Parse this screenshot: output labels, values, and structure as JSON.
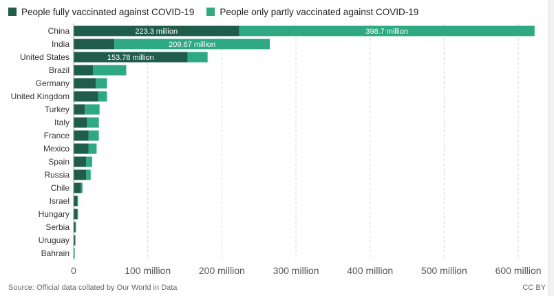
{
  "legend": {
    "fully_label": "People fully vaccinated against COVID-19",
    "partly_label": "People only partly vaccinated against COVID-19"
  },
  "colors": {
    "fully": "#1f5d4a",
    "partly": "#2fa982",
    "grid": "#d9d9d9",
    "text": "#333333"
  },
  "footer": {
    "source": "Source: Official data collated by Our World in Data",
    "license": "CC BY"
  },
  "chart_data": {
    "type": "bar",
    "orientation": "horizontal",
    "stacked": true,
    "categories": [
      "China",
      "India",
      "United States",
      "Brazil",
      "Germany",
      "United Kingdom",
      "Turkey",
      "Italy",
      "France",
      "Mexico",
      "Spain",
      "Russia",
      "Chile",
      "Israel",
      "Hungary",
      "Serbia",
      "Uruguay",
      "Bahrain"
    ],
    "series": [
      {
        "name": "People fully vaccinated against COVID-19",
        "values": [
          223.3,
          55,
          153.78,
          26,
          30,
          33,
          15,
          18,
          20,
          20,
          17,
          17,
          10,
          5,
          5,
          2.5,
          1.8,
          0.8
        ],
        "labels": [
          "223.3 million",
          "",
          "153.78 million",
          "",
          "",
          "",
          "",
          "",
          "",
          "",
          "",
          "",
          "",
          "",
          "",
          "",
          "",
          ""
        ]
      },
      {
        "name": "People only partly vaccinated against COVID-19",
        "values": [
          398.7,
          209.67,
          27,
          45,
          15,
          12,
          20,
          16,
          14,
          11,
          8,
          6,
          2,
          1,
          1,
          0.5,
          0.5,
          0.3
        ],
        "labels": [
          "398.7 million",
          "209.67 million",
          "",
          "",
          "",
          "",
          "",
          "",
          "",
          "",
          "",
          "",
          "",
          "",
          "",
          "",
          "",
          ""
        ]
      }
    ],
    "xlim": [
      0,
      625
    ],
    "xticks": [
      0,
      100,
      200,
      300,
      400,
      500,
      600
    ],
    "xtick_labels": [
      "0",
      "100 million",
      "200 million",
      "300 million",
      "400 million",
      "500 million",
      "600 million"
    ],
    "grid": "vertical dashed",
    "legend_position": "top-left"
  }
}
